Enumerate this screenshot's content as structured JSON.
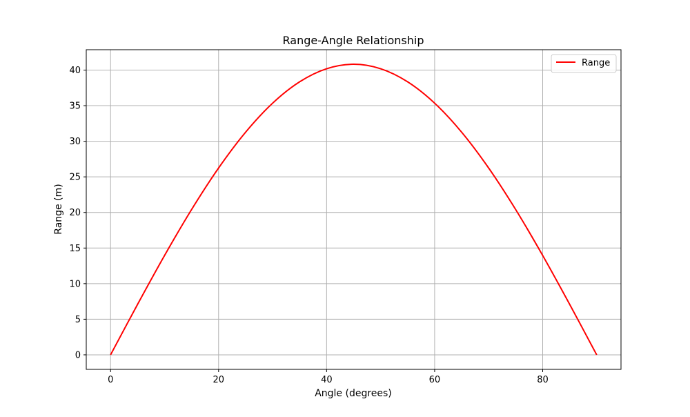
{
  "chart_data": {
    "type": "line",
    "title": "Range-Angle Relationship",
    "xlabel": "Angle (degrees)",
    "ylabel": "Range (m)",
    "xlim": [
      -4.5,
      94.5
    ],
    "ylim": [
      -2.04,
      42.86
    ],
    "xticks": [
      0,
      20,
      40,
      60,
      80
    ],
    "yticks": [
      0,
      5,
      10,
      15,
      20,
      25,
      30,
      35,
      40
    ],
    "grid": true,
    "legend_position": "top-right",
    "series": [
      {
        "name": "Range",
        "color": "#ff0000",
        "x": [
          0,
          5,
          10,
          15,
          20,
          25,
          30,
          35,
          40,
          45,
          50,
          55,
          60,
          65,
          70,
          75,
          80,
          85,
          90
        ],
        "y": [
          0.0,
          7.09,
          13.96,
          20.41,
          26.24,
          31.27,
          35.35,
          38.35,
          40.19,
          40.82,
          40.19,
          38.35,
          35.35,
          31.27,
          26.24,
          20.41,
          13.96,
          7.09,
          0.0
        ]
      }
    ]
  }
}
